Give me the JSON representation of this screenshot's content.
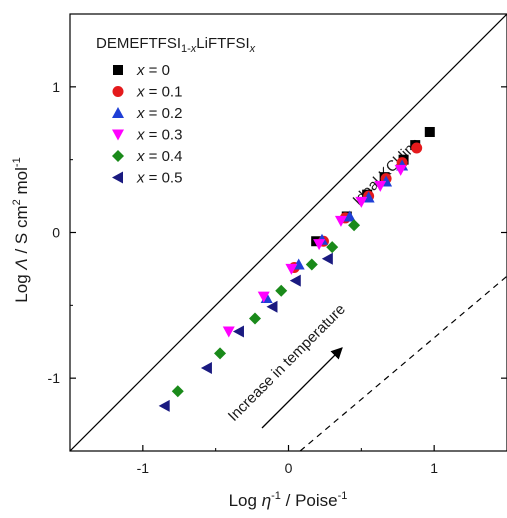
{
  "chart_data": {
    "type": "scatter",
    "title": "",
    "xlabel": "Log η⁻¹ / Poise⁻¹",
    "ylabel": "Log Λ / S cm² mol⁻¹",
    "xlim": [
      -1.5,
      1.5
    ],
    "ylim": [
      -1.5,
      1.5
    ],
    "x_ticks": [
      -1,
      0,
      1
    ],
    "y_ticks": [
      -1,
      0,
      1
    ],
    "grid": false,
    "legend_placement": "top-left",
    "legend_title": "DEMEFTFSI1-xLiFTFSIx",
    "series": [
      {
        "name": "x = 0",
        "marker": "square",
        "color": "#000000",
        "points": [
          [
            0.97,
            0.69
          ],
          [
            0.87,
            0.6
          ],
          [
            0.79,
            0.5
          ],
          [
            0.66,
            0.38
          ],
          [
            0.54,
            0.26
          ],
          [
            0.4,
            0.11
          ],
          [
            0.19,
            -0.06
          ]
        ]
      },
      {
        "name": "x = 0.1",
        "marker": "circle",
        "color": "#e41a1c",
        "points": [
          [
            0.88,
            0.58
          ],
          [
            0.78,
            0.48
          ],
          [
            0.67,
            0.37
          ],
          [
            0.55,
            0.25
          ],
          [
            0.39,
            0.1
          ],
          [
            0.24,
            -0.06
          ],
          [
            0.04,
            -0.24
          ]
        ]
      },
      {
        "name": "x = 0.2",
        "marker": "triangle-up",
        "color": "#1f3fd6",
        "points": [
          [
            0.78,
            0.46
          ],
          [
            0.67,
            0.35
          ],
          [
            0.55,
            0.24
          ],
          [
            0.42,
            0.11
          ],
          [
            0.23,
            -0.05
          ],
          [
            0.07,
            -0.22
          ],
          [
            -0.15,
            -0.45
          ]
        ]
      },
      {
        "name": "x = 0.3",
        "marker": "triangle-down",
        "color": "#ff00ff",
        "points": [
          [
            0.77,
            0.43
          ],
          [
            0.63,
            0.32
          ],
          [
            0.5,
            0.21
          ],
          [
            0.36,
            0.08
          ],
          [
            0.21,
            -0.08
          ],
          [
            0.02,
            -0.25
          ],
          [
            -0.17,
            -0.44
          ],
          [
            -0.41,
            -0.68
          ]
        ]
      },
      {
        "name": "x = 0.4",
        "marker": "diamond",
        "color": "#1a8a1a",
        "points": [
          [
            0.45,
            0.05
          ],
          [
            0.3,
            -0.1
          ],
          [
            0.16,
            -0.22
          ],
          [
            -0.05,
            -0.4
          ],
          [
            -0.23,
            -0.59
          ],
          [
            -0.47,
            -0.83
          ],
          [
            -0.76,
            -1.09
          ]
        ]
      },
      {
        "name": "x = 0.5",
        "marker": "triangle-left",
        "color": "#1a1a80",
        "points": [
          [
            0.27,
            -0.18
          ],
          [
            0.05,
            -0.33
          ],
          [
            -0.11,
            -0.51
          ],
          [
            -0.34,
            -0.68
          ],
          [
            -0.56,
            -0.93
          ],
          [
            -0.85,
            -1.19
          ]
        ]
      }
    ],
    "reference_lines": [
      {
        "label": "Ideal KCl line",
        "style": "solid",
        "from": [
          -1.5,
          -1.5
        ],
        "to": [
          1.5,
          1.5
        ]
      },
      {
        "label": "",
        "style": "dashed",
        "from": [
          0.08,
          -1.5
        ],
        "to": [
          1.5,
          -0.3
        ]
      }
    ],
    "annotations": [
      {
        "text": "Ideal KCl line"
      },
      {
        "text": "Increase in temperature"
      }
    ]
  }
}
